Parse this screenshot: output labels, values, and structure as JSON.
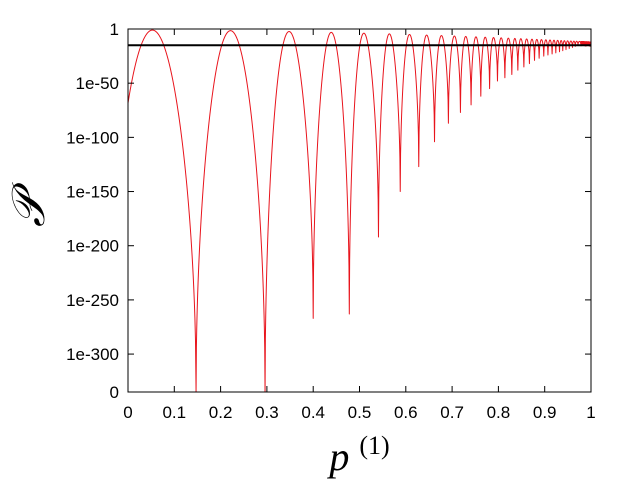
{
  "chart_data": {
    "type": "line",
    "title": "",
    "xlabel": "p",
    "xlabel_superscript": "(1)",
    "ylabel": "𝒫",
    "xlim": [
      0,
      1
    ],
    "ylim_log10": [
      -335,
      0
    ],
    "x_ticks": [
      "0",
      "0.1",
      "0.2",
      "0.3",
      "0.4",
      "0.5",
      "0.6",
      "0.7",
      "0.8",
      "0.9",
      "1"
    ],
    "y_ticks": [
      {
        "label": "1",
        "log10": 0
      },
      {
        "label": "1e-50",
        "log10": -50
      },
      {
        "label": "1e-100",
        "log10": -100
      },
      {
        "label": "1e-150",
        "log10": -150
      },
      {
        "label": "1e-200",
        "log10": -200
      },
      {
        "label": "1e-250",
        "log10": -250
      },
      {
        "label": "1e-300",
        "log10": -300
      },
      {
        "label": "0",
        "log10": -335
      }
    ],
    "grid": false,
    "legend": "none",
    "series": [
      {
        "color": "#e8141c",
        "peak_log10": -1,
        "peak_log10_at_x1": -12,
        "minima": [
          {
            "x": 0.147,
            "log10": -335
          },
          {
            "x": 0.296,
            "log10": -335
          },
          {
            "x": 0.4,
            "log10": -267
          },
          {
            "x": 0.478,
            "log10": -263
          },
          {
            "x": 0.541,
            "log10": -192
          },
          {
            "x": 0.588,
            "log10": -150
          },
          {
            "x": 0.628,
            "log10": -127
          },
          {
            "x": 0.662,
            "log10": -104
          },
          {
            "x": 0.692,
            "log10": -87
          },
          {
            "x": 0.718,
            "log10": -77
          },
          {
            "x": 0.741,
            "log10": -70
          },
          {
            "x": 0.762,
            "log10": -62
          },
          {
            "x": 0.781,
            "log10": -55
          },
          {
            "x": 0.798,
            "log10": -48
          },
          {
            "x": 0.814,
            "log10": -45
          },
          {
            "x": 0.829,
            "log10": -42
          },
          {
            "x": 0.842,
            "log10": -38
          },
          {
            "x": 0.855,
            "log10": -35
          },
          {
            "x": 0.867,
            "log10": -32
          },
          {
            "x": 0.878,
            "log10": -29
          },
          {
            "x": 0.888,
            "log10": -27
          },
          {
            "x": 0.898,
            "log10": -25
          },
          {
            "x": 0.907,
            "log10": -24
          },
          {
            "x": 0.916,
            "log10": -23
          },
          {
            "x": 0.924,
            "log10": -22
          },
          {
            "x": 0.932,
            "log10": -21
          },
          {
            "x": 0.939,
            "log10": -20
          },
          {
            "x": 0.946,
            "log10": -19
          },
          {
            "x": 0.953,
            "log10": -18
          },
          {
            "x": 0.96,
            "log10": -17
          },
          {
            "x": 0.966,
            "log10": -16
          },
          {
            "x": 0.972,
            "log10": -15
          },
          {
            "x": 0.978,
            "log10": -14
          }
        ]
      },
      {
        "color": "#000000",
        "constant_log10": -15
      }
    ]
  }
}
